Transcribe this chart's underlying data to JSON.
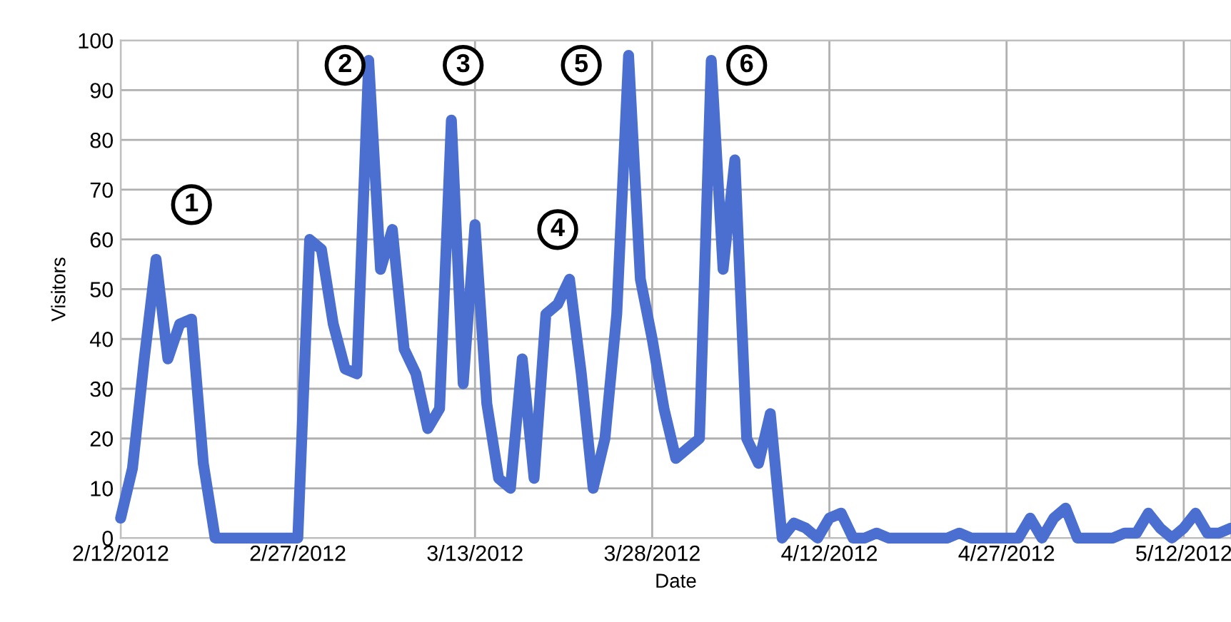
{
  "chart_data": {
    "type": "line",
    "xlabel": "Date",
    "ylabel": "Visitors",
    "x": [
      "2012-02-12",
      "2012-02-13",
      "2012-02-14",
      "2012-02-15",
      "2012-02-16",
      "2012-02-17",
      "2012-02-18",
      "2012-02-19",
      "2012-02-20",
      "2012-02-21",
      "2012-02-22",
      "2012-02-23",
      "2012-02-24",
      "2012-02-25",
      "2012-02-26",
      "2012-02-27",
      "2012-02-28",
      "2012-02-29",
      "2012-03-01",
      "2012-03-02",
      "2012-03-03",
      "2012-03-04",
      "2012-03-05",
      "2012-03-06",
      "2012-03-07",
      "2012-03-08",
      "2012-03-09",
      "2012-03-10",
      "2012-03-11",
      "2012-03-12",
      "2012-03-13",
      "2012-03-14",
      "2012-03-15",
      "2012-03-16",
      "2012-03-17",
      "2012-03-18",
      "2012-03-19",
      "2012-03-20",
      "2012-03-21",
      "2012-03-22",
      "2012-03-23",
      "2012-03-24",
      "2012-03-25",
      "2012-03-26",
      "2012-03-27",
      "2012-03-28",
      "2012-03-29",
      "2012-03-30",
      "2012-03-31",
      "2012-04-01",
      "2012-04-02",
      "2012-04-03",
      "2012-04-04",
      "2012-04-05",
      "2012-04-06",
      "2012-04-07",
      "2012-04-08",
      "2012-04-09",
      "2012-04-10",
      "2012-04-11",
      "2012-04-12",
      "2012-04-13",
      "2012-04-14",
      "2012-04-15",
      "2012-04-16",
      "2012-04-17",
      "2012-04-18",
      "2012-04-19",
      "2012-04-20",
      "2012-04-21",
      "2012-04-22",
      "2012-04-23",
      "2012-04-24",
      "2012-04-25",
      "2012-04-26",
      "2012-04-27",
      "2012-04-28",
      "2012-04-29",
      "2012-04-30",
      "2012-05-01",
      "2012-05-02",
      "2012-05-03",
      "2012-05-04",
      "2012-05-05",
      "2012-05-06",
      "2012-05-07",
      "2012-05-08",
      "2012-05-09",
      "2012-05-10",
      "2012-05-11",
      "2012-05-12",
      "2012-05-13",
      "2012-05-14",
      "2012-05-15",
      "2012-05-16"
    ],
    "series": [
      {
        "color": "#4a6fd0",
        "values": [
          4,
          14,
          36,
          56,
          36,
          43,
          44,
          15,
          0,
          0,
          0,
          0,
          0,
          0,
          0,
          0,
          60,
          58,
          43,
          34,
          33,
          96,
          54,
          62,
          38,
          33,
          22,
          26,
          84,
          31,
          63,
          27,
          12,
          10,
          36,
          12,
          45,
          47,
          52,
          33,
          10,
          20,
          45,
          97,
          52,
          40,
          26,
          16,
          18,
          20,
          96,
          54,
          76,
          20,
          15,
          25,
          0,
          3,
          2,
          0,
          4,
          5,
          0,
          0,
          1,
          0,
          0,
          0,
          0,
          0,
          0,
          1,
          0,
          0,
          0,
          0,
          0,
          4,
          0,
          4,
          6,
          0,
          0,
          0,
          0,
          1,
          1,
          5,
          2,
          0,
          2,
          5,
          1,
          1,
          2
        ]
      }
    ],
    "xlim": [
      "2012-02-12",
      "2012-05-16"
    ],
    "xticks": [
      {
        "value": "2012-02-12",
        "label": "2/12/2012"
      },
      {
        "value": "2012-02-27",
        "label": "2/27/2012"
      },
      {
        "value": "2012-03-13",
        "label": "3/13/2012"
      },
      {
        "value": "2012-03-28",
        "label": "3/28/2012"
      },
      {
        "value": "2012-04-12",
        "label": "4/12/2012"
      },
      {
        "value": "2012-04-27",
        "label": "4/27/2012"
      },
      {
        "value": "2012-05-12",
        "label": "5/12/2012"
      }
    ],
    "ylim": [
      0,
      100
    ],
    "yticks": [
      0,
      10,
      20,
      30,
      40,
      50,
      60,
      70,
      80,
      90,
      100
    ],
    "grid": true,
    "legend": false,
    "marker": "none",
    "line_style": "solid",
    "annotations": [
      {
        "text": "1",
        "x": "2012-02-18",
        "y": 67
      },
      {
        "text": "2",
        "x": "2012-03-02",
        "y": 95
      },
      {
        "text": "3",
        "x": "2012-03-12",
        "y": 95
      },
      {
        "text": "4",
        "x": "2012-03-20",
        "y": 62
      },
      {
        "text": "5",
        "x": "2012-03-22",
        "y": 95
      },
      {
        "text": "6",
        "x": "2012-04-05",
        "y": 95
      }
    ]
  }
}
